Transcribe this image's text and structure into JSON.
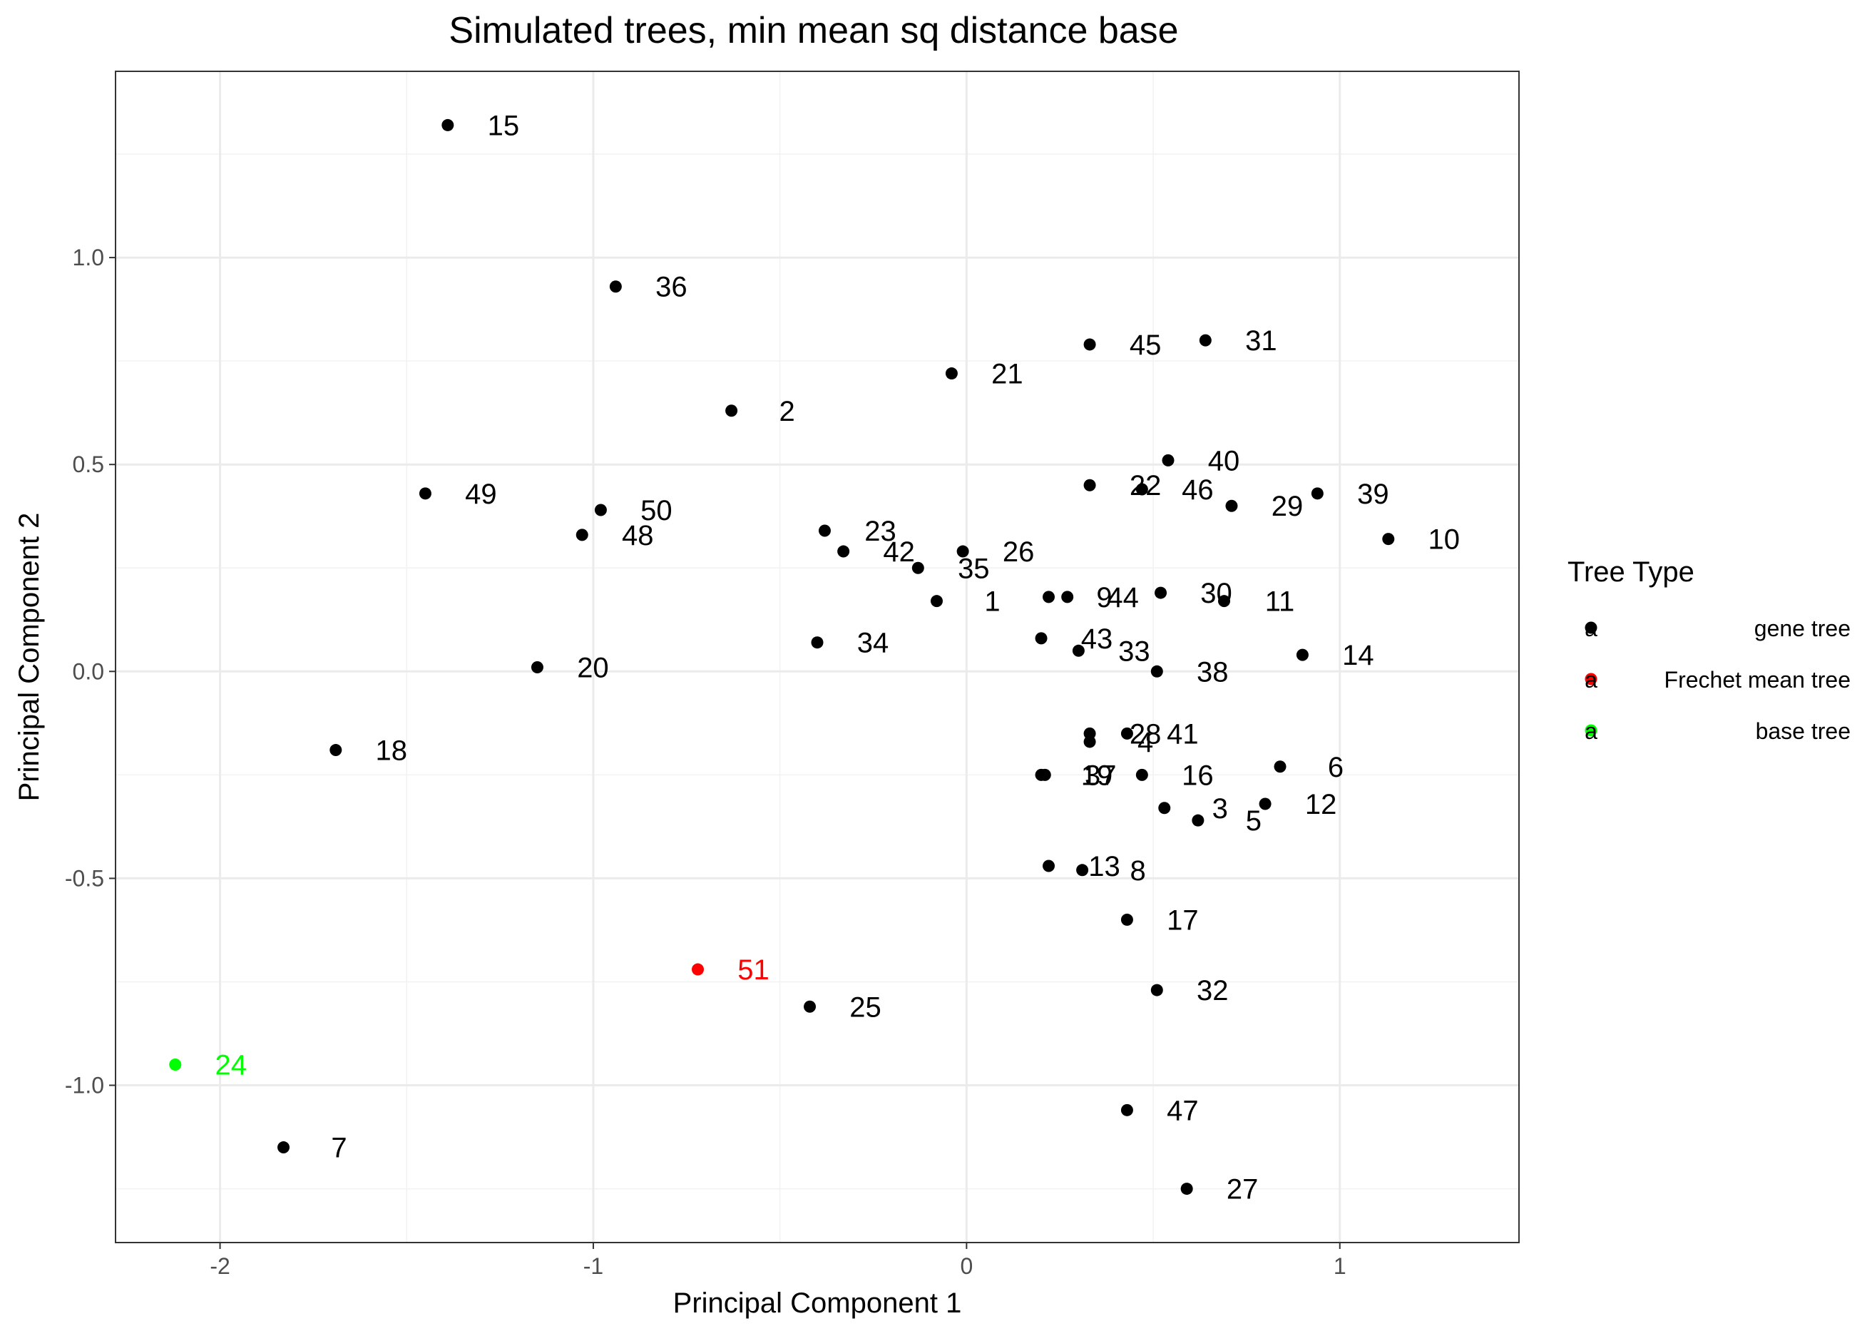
{
  "chart_data": {
    "type": "scatter",
    "title": "Simulated trees, min mean sq distance base",
    "xlabel": "Principal Component 1",
    "ylabel": "Principal Component 2",
    "xlim": [
      -2.28,
      1.48
    ],
    "ylim": [
      -1.38,
      1.45
    ],
    "xticks": [
      -2,
      -1,
      0,
      1
    ],
    "xtick_labels": [
      "-2",
      "-1",
      "0",
      "1"
    ],
    "yticks": [
      -1.0,
      -0.5,
      0.0,
      0.5,
      1.0
    ],
    "ytick_labels": [
      "-1.0",
      "-0.5",
      "0.0",
      "0.5",
      "1.0"
    ],
    "grid": true,
    "legend": {
      "title": "Tree Type",
      "placement": "right",
      "glyph_text": "a",
      "items": [
        {
          "label": "gene tree",
          "color": "#000000"
        },
        {
          "label": "Frechet mean tree",
          "color": "#ff0000"
        },
        {
          "label": "base tree",
          "color": "#00ff00"
        }
      ]
    },
    "colors": {
      "gene tree": "#000000",
      "Frechet mean tree": "#ff0000",
      "base tree": "#00ff00"
    },
    "points": [
      {
        "label": "1",
        "x": -0.08,
        "y": 0.17,
        "type": "gene tree"
      },
      {
        "label": "2",
        "x": -0.63,
        "y": 0.63,
        "type": "gene tree"
      },
      {
        "label": "3",
        "x": 0.53,
        "y": -0.33,
        "type": "gene tree"
      },
      {
        "label": "4",
        "x": 0.33,
        "y": -0.17,
        "type": "gene tree"
      },
      {
        "label": "5",
        "x": 0.62,
        "y": -0.36,
        "type": "gene tree"
      },
      {
        "label": "6",
        "x": 0.84,
        "y": -0.23,
        "type": "gene tree"
      },
      {
        "label": "7",
        "x": -1.83,
        "y": -1.15,
        "type": "gene tree"
      },
      {
        "label": "8",
        "x": 0.31,
        "y": -0.48,
        "type": "gene tree"
      },
      {
        "label": "9",
        "x": 0.22,
        "y": 0.18,
        "type": "gene tree"
      },
      {
        "label": "10",
        "x": 1.13,
        "y": 0.32,
        "type": "gene tree"
      },
      {
        "label": "11",
        "x": 0.69,
        "y": 0.17,
        "type": "gene tree"
      },
      {
        "label": "12",
        "x": 0.8,
        "y": -0.32,
        "type": "gene tree"
      },
      {
        "label": "13",
        "x": 0.22,
        "y": -0.47,
        "type": "gene tree"
      },
      {
        "label": "14",
        "x": 0.9,
        "y": 0.04,
        "type": "gene tree"
      },
      {
        "label": "15",
        "x": -1.39,
        "y": 1.32,
        "type": "gene tree"
      },
      {
        "label": "16",
        "x": 0.47,
        "y": -0.25,
        "type": "gene tree"
      },
      {
        "label": "17",
        "x": 0.43,
        "y": -0.6,
        "type": "gene tree"
      },
      {
        "label": "18",
        "x": -1.69,
        "y": -0.19,
        "type": "gene tree"
      },
      {
        "label": "19",
        "x": 0.2,
        "y": -0.25,
        "type": "gene tree"
      },
      {
        "label": "20",
        "x": -1.15,
        "y": 0.01,
        "type": "gene tree"
      },
      {
        "label": "21",
        "x": -0.04,
        "y": 0.72,
        "type": "gene tree"
      },
      {
        "label": "22",
        "x": 0.33,
        "y": 0.45,
        "type": "gene tree"
      },
      {
        "label": "23",
        "x": -0.38,
        "y": 0.34,
        "type": "gene tree"
      },
      {
        "label": "24",
        "x": -2.12,
        "y": -0.95,
        "type": "base tree"
      },
      {
        "label": "25",
        "x": -0.42,
        "y": -0.81,
        "type": "gene tree"
      },
      {
        "label": "26",
        "x": -0.01,
        "y": 0.29,
        "type": "gene tree"
      },
      {
        "label": "27",
        "x": 0.59,
        "y": -1.25,
        "type": "gene tree"
      },
      {
        "label": "28",
        "x": 0.33,
        "y": -0.15,
        "type": "gene tree"
      },
      {
        "label": "29",
        "x": 0.71,
        "y": 0.4,
        "type": "gene tree"
      },
      {
        "label": "30",
        "x": 0.52,
        "y": 0.19,
        "type": "gene tree"
      },
      {
        "label": "31",
        "x": 0.64,
        "y": 0.8,
        "type": "gene tree"
      },
      {
        "label": "32",
        "x": 0.51,
        "y": -0.77,
        "type": "gene tree"
      },
      {
        "label": "33",
        "x": 0.3,
        "y": 0.05,
        "type": "gene tree"
      },
      {
        "label": "34",
        "x": -0.4,
        "y": 0.07,
        "type": "gene tree"
      },
      {
        "label": "35",
        "x": -0.13,
        "y": 0.25,
        "type": "gene tree"
      },
      {
        "label": "36",
        "x": -0.94,
        "y": 0.93,
        "type": "gene tree"
      },
      {
        "label": "37",
        "x": 0.21,
        "y": -0.25,
        "type": "gene tree"
      },
      {
        "label": "38",
        "x": 0.51,
        "y": 0.0,
        "type": "gene tree"
      },
      {
        "label": "39",
        "x": 0.94,
        "y": 0.43,
        "type": "gene tree"
      },
      {
        "label": "40",
        "x": 0.54,
        "y": 0.51,
        "type": "gene tree"
      },
      {
        "label": "41",
        "x": 0.43,
        "y": -0.15,
        "type": "gene tree"
      },
      {
        "label": "42",
        "x": -0.33,
        "y": 0.29,
        "type": "gene tree"
      },
      {
        "label": "43",
        "x": 0.2,
        "y": 0.08,
        "type": "gene tree"
      },
      {
        "label": "44",
        "x": 0.27,
        "y": 0.18,
        "type": "gene tree"
      },
      {
        "label": "45",
        "x": 0.33,
        "y": 0.79,
        "type": "gene tree"
      },
      {
        "label": "46",
        "x": 0.47,
        "y": 0.44,
        "type": "gene tree"
      },
      {
        "label": "47",
        "x": 0.43,
        "y": -1.06,
        "type": "gene tree"
      },
      {
        "label": "48",
        "x": -1.03,
        "y": 0.33,
        "type": "gene tree"
      },
      {
        "label": "49",
        "x": -1.45,
        "y": 0.43,
        "type": "gene tree"
      },
      {
        "label": "50",
        "x": -0.98,
        "y": 0.39,
        "type": "gene tree"
      },
      {
        "label": "51",
        "x": -0.72,
        "y": -0.72,
        "type": "Frechet mean tree"
      }
    ]
  }
}
